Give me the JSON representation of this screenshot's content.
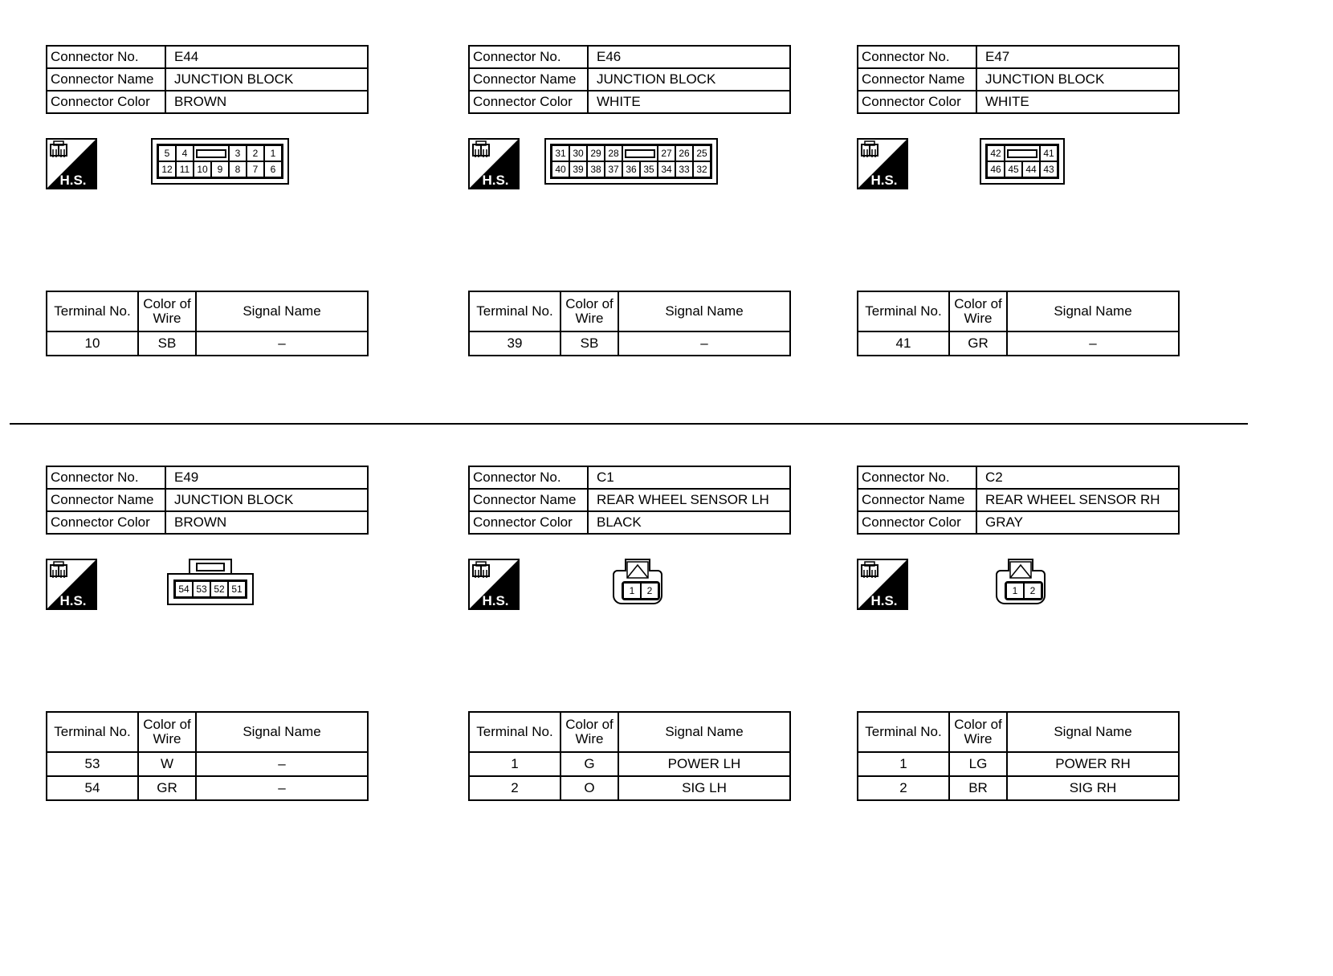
{
  "labels": {
    "connector_no": "Connector No.",
    "connector_name": "Connector Name",
    "connector_color": "Connector Color",
    "terminal_no": "Terminal No.",
    "color_of_wire": "Color of Wire",
    "signal_name": "Signal Name",
    "hs": "H.S."
  },
  "connectors": [
    {
      "no": "E44",
      "name": "JUNCTION BLOCK",
      "color": "BROWN",
      "pin_type": "grid",
      "pins": [
        [
          "5",
          "4",
          "slot",
          "3",
          "2",
          "1"
        ],
        [
          "12",
          "11",
          "10",
          "9",
          "8",
          "7",
          "6"
        ]
      ],
      "terminals": [
        {
          "terminal": "10",
          "wire": "SB",
          "signal": "–"
        }
      ]
    },
    {
      "no": "E46",
      "name": "JUNCTION BLOCK",
      "color": "WHITE",
      "pin_type": "grid",
      "pins": [
        [
          "31",
          "30",
          "29",
          "28",
          "slot",
          "27",
          "26",
          "25"
        ],
        [
          "40",
          "39",
          "38",
          "37",
          "36",
          "35",
          "34",
          "33",
          "32"
        ]
      ],
      "terminals": [
        {
          "terminal": "39",
          "wire": "SB",
          "signal": "–"
        }
      ]
    },
    {
      "no": "E47",
      "name": "JUNCTION BLOCK",
      "color": "WHITE",
      "pin_type": "grid",
      "pins": [
        [
          "42",
          "slot",
          "41"
        ],
        [
          "46",
          "45",
          "44",
          "43"
        ]
      ],
      "terminals": [
        {
          "terminal": "41",
          "wire": "GR",
          "signal": "–"
        }
      ]
    },
    {
      "no": "E49",
      "name": "JUNCTION BLOCK",
      "color": "BROWN",
      "pin_type": "bump",
      "pins": [
        [
          "54",
          "53",
          "52",
          "51"
        ]
      ],
      "terminals": [
        {
          "terminal": "53",
          "wire": "W",
          "signal": "–"
        },
        {
          "terminal": "54",
          "wire": "GR",
          "signal": "–"
        }
      ]
    },
    {
      "no": "C1",
      "name": "REAR WHEEL SENSOR LH",
      "color": "BLACK",
      "pin_type": "sensor",
      "pins": [
        [
          "1",
          "2"
        ]
      ],
      "terminals": [
        {
          "terminal": "1",
          "wire": "G",
          "signal": "POWER LH"
        },
        {
          "terminal": "2",
          "wire": "O",
          "signal": "SIG LH"
        }
      ]
    },
    {
      "no": "C2",
      "name": "REAR WHEEL SENSOR RH",
      "color": "GRAY",
      "pin_type": "sensor",
      "pins": [
        [
          "1",
          "2"
        ]
      ],
      "terminals": [
        {
          "terminal": "1",
          "wire": "LG",
          "signal": "POWER RH"
        },
        {
          "terminal": "2",
          "wire": "BR",
          "signal": "SIG RH"
        }
      ]
    }
  ]
}
